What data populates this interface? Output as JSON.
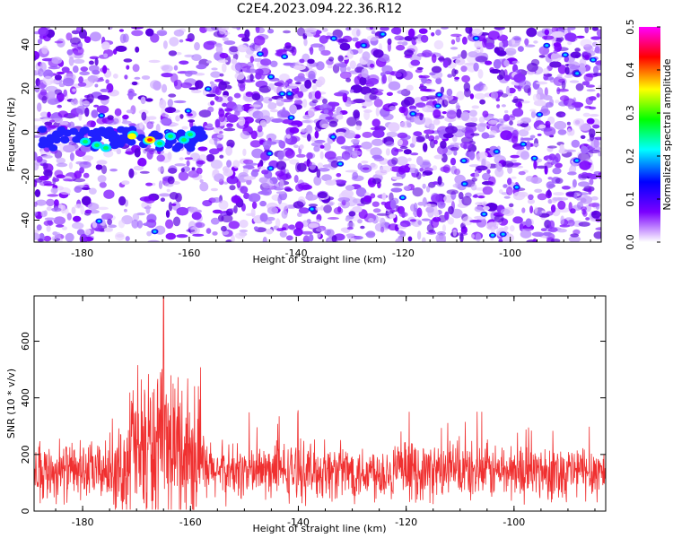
{
  "title": "C2E4.2023.094.22.36.R12",
  "chart_data": [
    {
      "type": "heatmap",
      "xlabel": "Height of straight line (km)",
      "ylabel": "Frequency (Hz)",
      "xlim": [
        -189,
        -83
      ],
      "ylim": [
        -50,
        48
      ],
      "xticks": [
        -180,
        -160,
        -140,
        -120,
        -100
      ],
      "yticks": [
        -40,
        -20,
        0,
        20,
        40
      ],
      "colorbar": {
        "label": "Normalized spectral amplitude",
        "range": [
          0.0,
          0.5
        ],
        "ticks": [
          0.0,
          0.1,
          0.2,
          0.3,
          0.4,
          0.5
        ],
        "colors": [
          "#ffffff",
          "#7b00ff",
          "#0000ff",
          "#00ffff",
          "#00ff00",
          "#ffff00",
          "#ff0000",
          "#ff00ff"
        ]
      },
      "features": [
        {
          "x_range": [
            -188,
            -157
          ],
          "y_center": -3,
          "y_halfwidth": 8,
          "peak_value": 0.45
        }
      ]
    },
    {
      "type": "line",
      "xlabel": "Height of straight line (km)",
      "ylabel": "SNR (10 * v/v)",
      "xlim": [
        -189,
        -83
      ],
      "ylim": [
        0,
        760
      ],
      "xticks": [
        -180,
        -160,
        -140,
        -120,
        -100
      ],
      "yticks": [
        0,
        200,
        400,
        600
      ],
      "series_color": "#f03030",
      "baseline_mean": 140,
      "peak": {
        "x": -165,
        "y": 760
      },
      "elevated_region": [
        -172,
        -158
      ]
    }
  ]
}
